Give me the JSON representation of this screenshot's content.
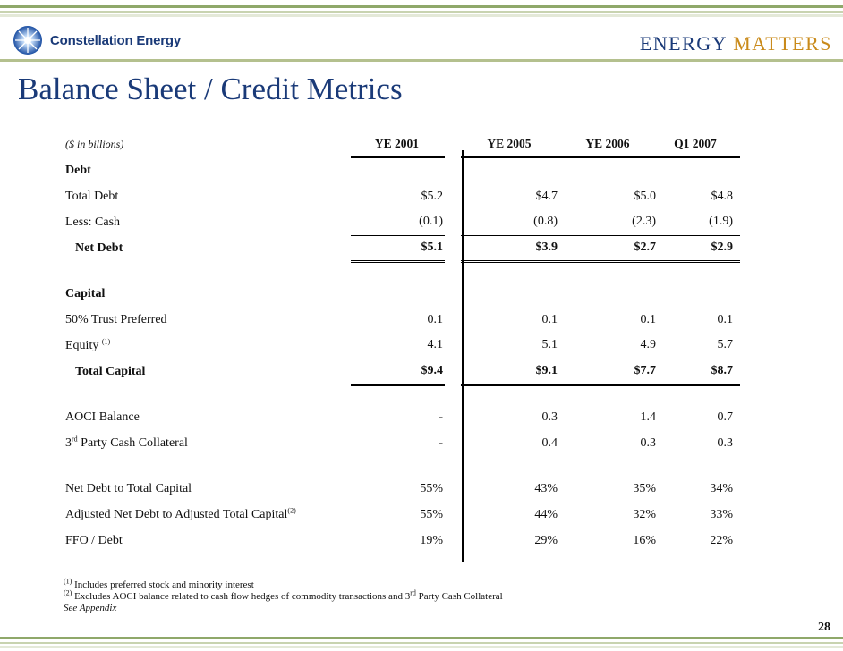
{
  "header": {
    "logo_text": "Constellation Energy",
    "tagline_part1": "ENERGY",
    "tagline_part2": "MATTERS",
    "colors": {
      "brand_blue": "#1a3a78",
      "accent_gold": "#c98a1a",
      "rule_green": "#8fa86a"
    }
  },
  "title": "Balance Sheet / Credit Metrics",
  "table": {
    "unit_note": "($ in billions)",
    "columns": [
      "YE 2001",
      "YE 2005",
      "YE 2006",
      "Q1 2007"
    ],
    "rows": {
      "debt_header": {
        "label": "Debt"
      },
      "total_debt": {
        "label": "Total Debt",
        "values": [
          "$5.2",
          "$4.7",
          "$5.0",
          "$4.8"
        ]
      },
      "less_cash": {
        "label": "Less: Cash",
        "values": [
          "(0.1)",
          "(0.8)",
          "(2.3)",
          "(1.9)"
        ]
      },
      "net_debt": {
        "label": "Net Debt",
        "values": [
          "$5.1",
          "$3.9",
          "$2.7",
          "$2.9"
        ]
      },
      "capital_header": {
        "label": "Capital"
      },
      "trust_preferred": {
        "label": "50% Trust Preferred",
        "values": [
          "0.1",
          "0.1",
          "0.1",
          "0.1"
        ]
      },
      "equity": {
        "label": "Equity",
        "sup": "(1)",
        "values": [
          "4.1",
          "5.1",
          "4.9",
          "5.7"
        ]
      },
      "total_capital": {
        "label": "Total Capital",
        "values": [
          "$9.4",
          "$9.1",
          "$7.7",
          "$8.7"
        ]
      },
      "aoci": {
        "label": "AOCI Balance",
        "values": [
          "-",
          "0.3",
          "1.4",
          "0.7"
        ]
      },
      "collateral": {
        "label_pre": "3",
        "label_sup": "rd",
        "label_post": " Party Cash Collateral",
        "values": [
          "-",
          "0.4",
          "0.3",
          "0.3"
        ]
      },
      "net_debt_ratio": {
        "label": "Net Debt to Total Capital",
        "values": [
          "55%",
          "43%",
          "35%",
          "34%"
        ]
      },
      "adj_ratio": {
        "label": "Adjusted Net Debt to Adjusted Total Capital",
        "sup": "(2)",
        "values": [
          "55%",
          "44%",
          "32%",
          "33%"
        ]
      },
      "ffo_debt": {
        "label": "FFO / Debt",
        "values": [
          "19%",
          "29%",
          "16%",
          "22%"
        ]
      }
    }
  },
  "footnotes": {
    "fn1_marker": "(1)",
    "fn1_text": " Includes preferred stock and minority interest",
    "fn2_marker": "(2)",
    "fn2_text_a": " Excludes AOCI balance related to cash flow hedges of commodity transactions and 3",
    "fn2_sup": "rd",
    "fn2_text_b": " Party Cash Collateral",
    "see_appendix": "See Appendix"
  },
  "page_number": "28"
}
